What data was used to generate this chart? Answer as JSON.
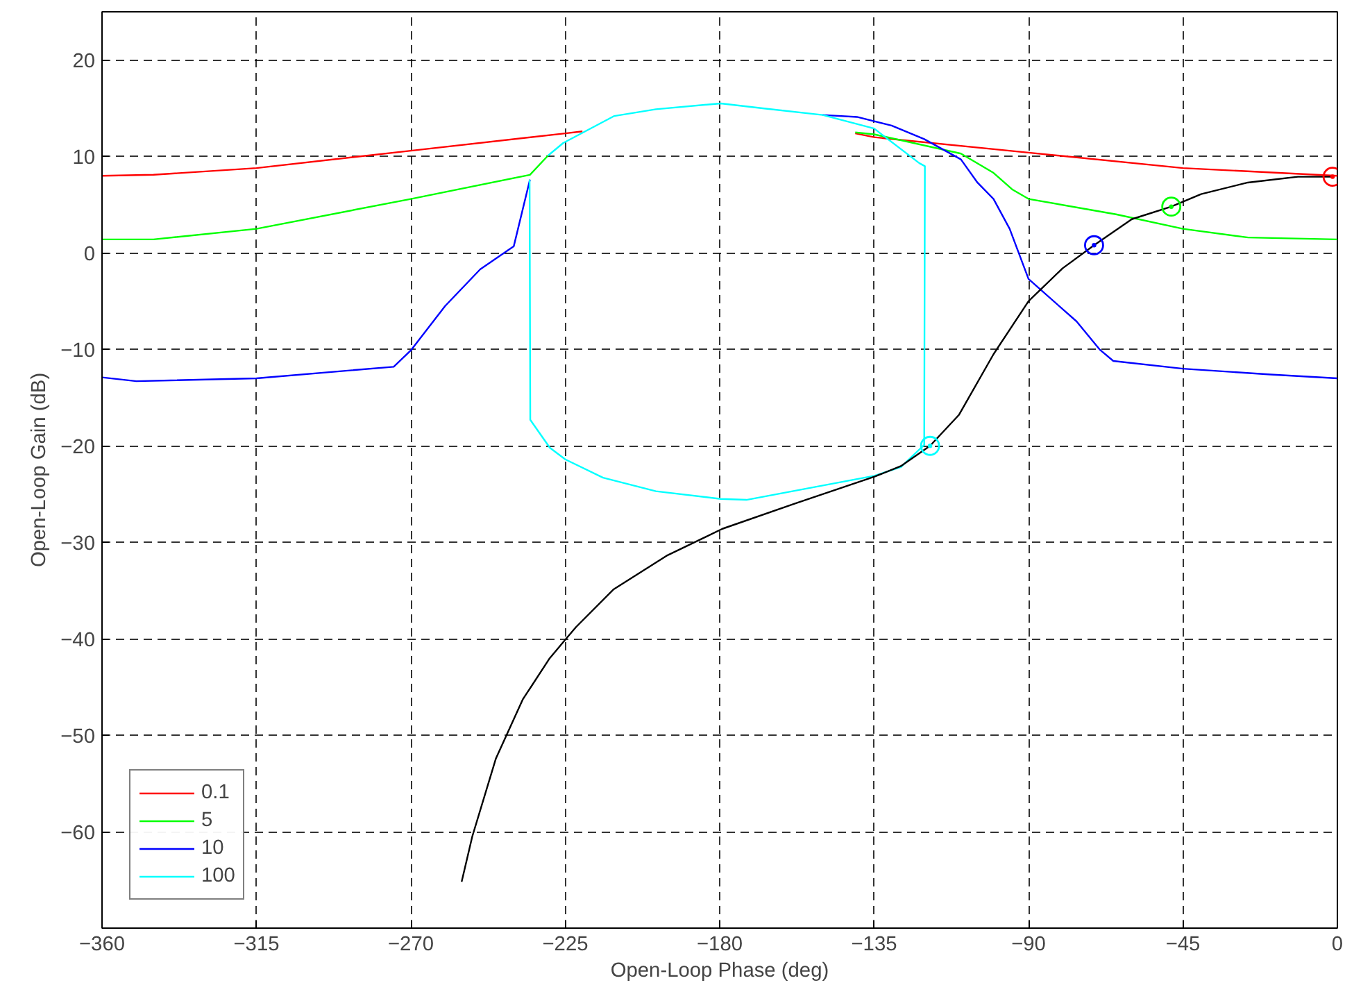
{
  "chart_data": {
    "type": "line",
    "xlabel": "Open-Loop Phase (deg)",
    "ylabel": "Open-Loop Gain (dB)",
    "xlim": [
      -360,
      0
    ],
    "ylim": [
      -70,
      25
    ],
    "xticks": [
      -360,
      -315,
      -270,
      -225,
      -180,
      -135,
      -90,
      -45,
      0
    ],
    "yticks": [
      -60,
      -50,
      -40,
      -30,
      -20,
      -10,
      0,
      10,
      20
    ],
    "grid": true,
    "legend": "bottom left",
    "line_style": "solid",
    "series": [
      {
        "name": "0.1",
        "color": "#ff0000",
        "x": [
          -360,
          -345,
          -315,
          -270,
          -225,
          -220,
          -210.7,
          -198.6,
          -179.7,
          -167.5,
          -150,
          -140.5,
          -135,
          -90,
          -45,
          0
        ],
        "values": [
          8.0,
          8.1,
          8.8,
          10.6,
          12.4,
          12.6,
          null,
          null,
          null,
          null,
          null,
          12.4,
          12.0,
          10.4,
          8.8,
          8.0
        ]
      },
      {
        "name": "5",
        "color": "#00ff00",
        "x": [
          -360,
          -345,
          -315,
          -270,
          -235.3,
          -230,
          -225.6,
          -210.7,
          -198.6,
          -179.7,
          -167.5,
          -150,
          -140.5,
          -135,
          -109.7,
          -100.2,
          -94.8,
          -90,
          -64.5,
          -45,
          -26,
          0
        ],
        "values": [
          1.4,
          1.4,
          2.5,
          5.6,
          8.1,
          10.1,
          null,
          null,
          null,
          null,
          null,
          null,
          12.5,
          12.3,
          10.3,
          8.3,
          6.6,
          5.6,
          4.0,
          2.5,
          1.6,
          1.4
        ]
      },
      {
        "name": "10",
        "color": "#0000ff",
        "x": [
          -360,
          -350,
          -315,
          -275,
          -270,
          -260,
          -249.8,
          -240,
          -235.3,
          -230,
          -225.6,
          -210.7,
          -198.6,
          -179.7,
          -167.5,
          -150,
          -140,
          -129.9,
          -120.4,
          -109.7,
          -104.9,
          -100.2,
          -95.5,
          -90,
          -76,
          -69.3,
          -65.3,
          -45,
          -19.5,
          0
        ],
        "values": [
          -12.9,
          -13.3,
          -13.0,
          -11.8,
          -10.1,
          -5.5,
          -1.7,
          0.7,
          7.6,
          null,
          null,
          null,
          null,
          null,
          null,
          14.3,
          14.1,
          13.2,
          11.8,
          9.7,
          7.3,
          5.6,
          2.5,
          -2.7,
          -7.1,
          -10.0,
          -11.2,
          -12.0,
          -12.6,
          -13.0
        ]
      },
      {
        "name": "100",
        "color": "#00ffff",
        "x": [
          -235.4,
          -235.2,
          -229.5,
          -225,
          -214,
          -198.6,
          -179.7,
          -172.2,
          -134.9,
          -127.2,
          -120.4,
          -120.2,
          -121.8,
          -135,
          -150,
          -167.5,
          -179.7,
          -198.6,
          -210.7,
          -225.6,
          -230
        ],
        "values": [
          7.6,
          -17.3,
          -20.2,
          -21.4,
          -23.3,
          -24.7,
          -25.5,
          -25.6,
          -23.1,
          -22.2,
          -19.9,
          9.0,
          9.3,
          12.9,
          14.3,
          15.0,
          15.5,
          14.9,
          14.2,
          11.4,
          10.1
        ]
      },
      {
        "color": "#000000",
        "x": [
          -255.2,
          -252.1,
          -245.2,
          -237.4,
          -229.7,
          -225,
          -221.9,
          -211,
          -195.5,
          -179.2,
          -158.2,
          -134.9,
          -127.2,
          -118.7,
          -110.3,
          -100.2,
          -90,
          -80.1,
          -70.9,
          -59.9,
          -48.4,
          -39.7,
          -26.1,
          -11.5,
          -1.4
        ],
        "values": [
          -65.2,
          -60.5,
          -52.4,
          -46.3,
          -42.1,
          -40.1,
          -38.8,
          -34.9,
          -31.4,
          -28.6,
          -26.0,
          -23.2,
          -22.1,
          -20.0,
          -16.8,
          -10.5,
          -5.0,
          -1.6,
          0.8,
          3.5,
          4.8,
          6.1,
          7.3,
          7.9,
          7.9
        ]
      },
      {
        "type": "scatter",
        "marker": "circle",
        "colors": [
          "#ff0000",
          "#00ff00",
          "#0000ff",
          "#00ffff"
        ],
        "x": [
          -1.4,
          -48.4,
          -70.9,
          -118.7
        ],
        "values": [
          7.9,
          4.8,
          0.8,
          -20.0
        ]
      }
    ]
  }
}
